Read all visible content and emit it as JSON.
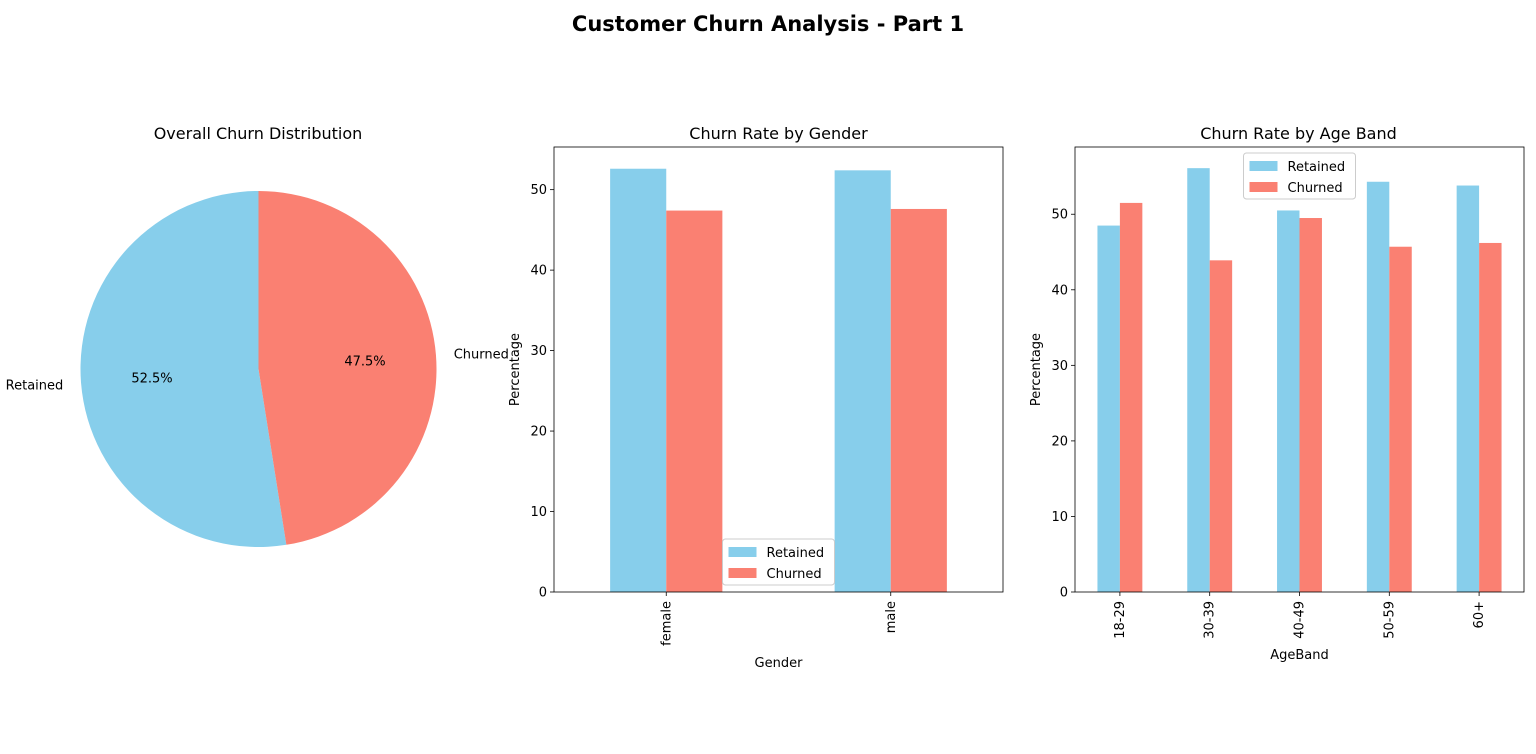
{
  "figure": {
    "title": "Customer Churn Analysis - Part 1"
  },
  "colors": {
    "retained": "#87CEEB",
    "churned": "#FA8072"
  },
  "chart_data": [
    {
      "type": "pie",
      "title": "Overall Churn Distribution",
      "labels": [
        "Retained",
        "Churned"
      ],
      "values": [
        52.5,
        47.5
      ],
      "pct_labels": [
        "52.5%",
        "47.5%"
      ],
      "start_angle": 90
    },
    {
      "type": "bar",
      "title": "Churn Rate by Gender",
      "xlabel": "Gender",
      "ylabel": "Percentage",
      "categories": [
        "female",
        "male"
      ],
      "series": [
        {
          "name": "Retained",
          "values": [
            52.6,
            52.4
          ]
        },
        {
          "name": "Churned",
          "values": [
            47.4,
            47.6
          ]
        }
      ],
      "ylim": [
        0,
        55.3
      ],
      "yticks": [
        0,
        10,
        20,
        30,
        40,
        50
      ],
      "legend": "lower center"
    },
    {
      "type": "bar",
      "title": "Churn Rate by Age Band",
      "xlabel": "AgeBand",
      "ylabel": "Percentage",
      "categories": [
        "18-29",
        "30-39",
        "40-49",
        "50-59",
        "60+"
      ],
      "series": [
        {
          "name": "Retained",
          "values": [
            48.5,
            56.1,
            50.5,
            54.3,
            53.8
          ]
        },
        {
          "name": "Churned",
          "values": [
            51.5,
            43.9,
            49.5,
            45.7,
            46.2
          ]
        }
      ],
      "ylim": [
        0,
        58.9
      ],
      "yticks": [
        0,
        10,
        20,
        30,
        40,
        50
      ],
      "legend": "upper center"
    }
  ]
}
